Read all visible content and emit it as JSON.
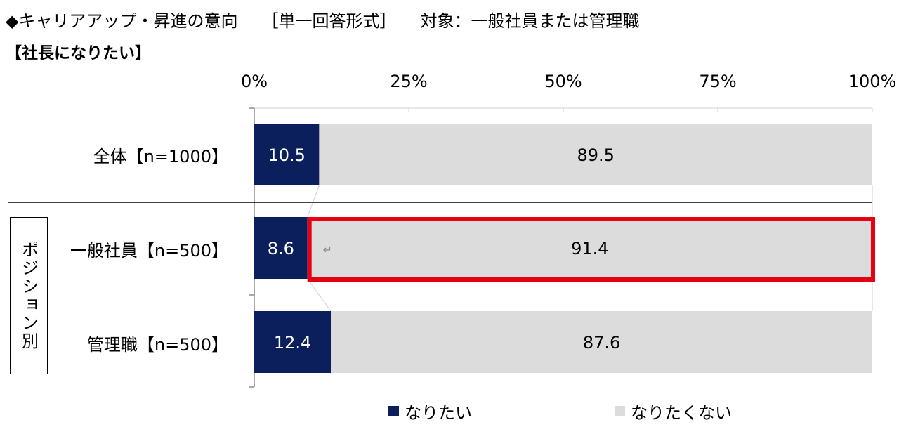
{
  "title": {
    "main": "◆キャリアアップ・昇進の意向",
    "format": "［単一回答形式］",
    "target": "対象：一般社員または管理職"
  },
  "subtitle": "【社長になりたい】",
  "group_label": "ポジション別",
  "colors": {
    "want": "#0b1f5c",
    "not_want": "#dcdcdc",
    "highlight": "#e60012"
  },
  "chart_data": {
    "type": "bar",
    "orientation": "horizontal",
    "stacked": "percent",
    "xlim": [
      0,
      100
    ],
    "x_ticks": [
      "0%",
      "25%",
      "50%",
      "75%",
      "100%"
    ],
    "categories": [
      "全体【n=1000】",
      "一般社員【n=500】",
      "管理職【n=500】"
    ],
    "series": [
      {
        "name": "なりたい",
        "values": [
          10.5,
          8.6,
          12.4
        ],
        "labels": [
          "10.5",
          "8.6",
          "12.4"
        ]
      },
      {
        "name": "なりたくない",
        "values": [
          89.5,
          91.4,
          87.6
        ],
        "labels": [
          "89.5",
          "91.4",
          "87.6"
        ]
      }
    ],
    "highlight": {
      "category": "一般社員【n=500】",
      "series": "なりたくない"
    },
    "annotation": "↵",
    "legend_position": "bottom",
    "grid": false
  }
}
